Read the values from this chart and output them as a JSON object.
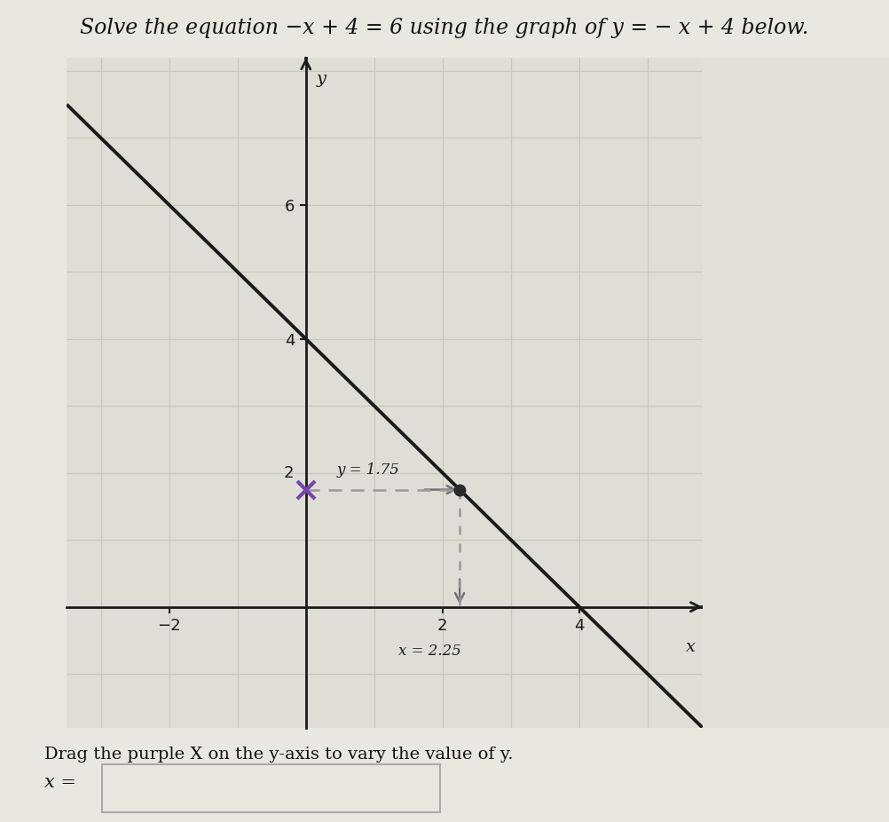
{
  "title": "Solve the equation −x + 4 = 6 using the graph of y = − x + 4 below.",
  "footer_text": "Drag the purple X on the y-axis to vary the value of y.",
  "x_label": "x",
  "y_label": "y",
  "xlim": [
    -3.5,
    5.8
  ],
  "ylim": [
    -1.8,
    8.2
  ],
  "xticks": [
    -2,
    2,
    4
  ],
  "yticks": [
    4,
    6
  ],
  "ytick_extra": 2,
  "grid_color": "#c8c8bc",
  "bg_color": "#deded6",
  "fig_bg_color": "#e8e8e0",
  "right_bg_color": "#e0e0d8",
  "line_color": "#1a1a1a",
  "slope": -1,
  "intercept": 4,
  "line_xmin": -3.5,
  "line_xmax": 5.8,
  "point_x": 2.25,
  "point_y": 1.75,
  "dashed_color": "#999999",
  "arrow_color": "#707070",
  "marker_color": "#2a2a2a",
  "x_marker_color": "#7744aa",
  "annotation_y_text": "y = 1.75",
  "annotation_x_text": "x = 2.25",
  "title_fontsize": 17,
  "axis_label_fontsize": 14,
  "tick_fontsize": 13,
  "annotation_fontsize": 12,
  "footer_fontsize": 14,
  "input_label_fontsize": 15
}
